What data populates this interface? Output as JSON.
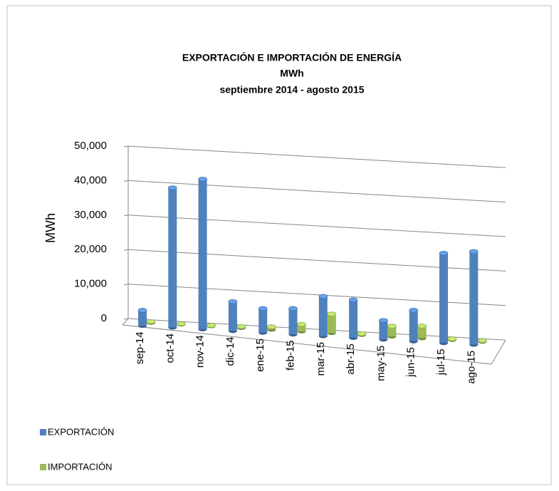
{
  "chart_data": {
    "type": "bar3d",
    "title": "EXPORTACIÓN E IMPORTACIÓN DE ENERGÍA",
    "subtitle": [
      "MWh",
      "septiembre 2014  -  agosto 2015"
    ],
    "ylabel": "MWh",
    "categories": [
      "sep-14",
      "oct-14",
      "nov-14",
      "dic-14",
      "ene-15",
      "feb-15",
      "mar-15",
      "abr-15",
      "may-15",
      "jun-15",
      "jul-15",
      "ago-15"
    ],
    "series": [
      {
        "name": "EXPORTACIÓN",
        "color": "#4f81bd",
        "values": [
          4500,
          40500,
          43500,
          8500,
          7000,
          7500,
          11500,
          11000,
          5500,
          9000,
          26000,
          27000
        ]
      },
      {
        "name": "IMPORTACIÓN",
        "color": "#9bbb59",
        "values": [
          300,
          200,
          200,
          400,
          800,
          2000,
          5500,
          300,
          3000,
          3500,
          300,
          300
        ]
      }
    ],
    "ylim": [
      0,
      50000
    ],
    "yticks": [
      0,
      {
        "value": 10000,
        "label": "10,000"
      },
      {
        "value": 20000,
        "label": "20,000"
      },
      {
        "value": 30000,
        "label": "30,000"
      },
      {
        "value": 40000,
        "label": "40,000"
      },
      {
        "value": 50000,
        "label": "50,000"
      }
    ],
    "grid": true,
    "legend": "bottom-left"
  }
}
